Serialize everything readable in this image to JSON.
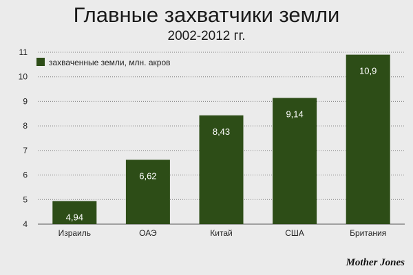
{
  "chart_data": {
    "type": "bar",
    "title": "Главные захватчики земли",
    "subtitle": "2002-2012 гг.",
    "categories": [
      "Израиль",
      "ОАЭ",
      "Китай",
      "США",
      "Британия"
    ],
    "series": [
      {
        "name": "захваченные земли, млн. акров",
        "values": [
          4.94,
          6.62,
          8.43,
          9.14,
          10.9
        ]
      }
    ],
    "data_labels": [
      "4,94",
      "6,62",
      "8,43",
      "9,14",
      "10,9"
    ],
    "yticks": [
      "4",
      "5",
      "6",
      "7",
      "8",
      "9",
      "10",
      "11"
    ],
    "ylim": [
      4,
      11
    ],
    "grid": true,
    "legend_position": "top-left",
    "colors": {
      "bar": "#2d4d17",
      "grid": "#7a7a7a",
      "background": "#ebebeb"
    }
  },
  "source": "Mother Jones"
}
